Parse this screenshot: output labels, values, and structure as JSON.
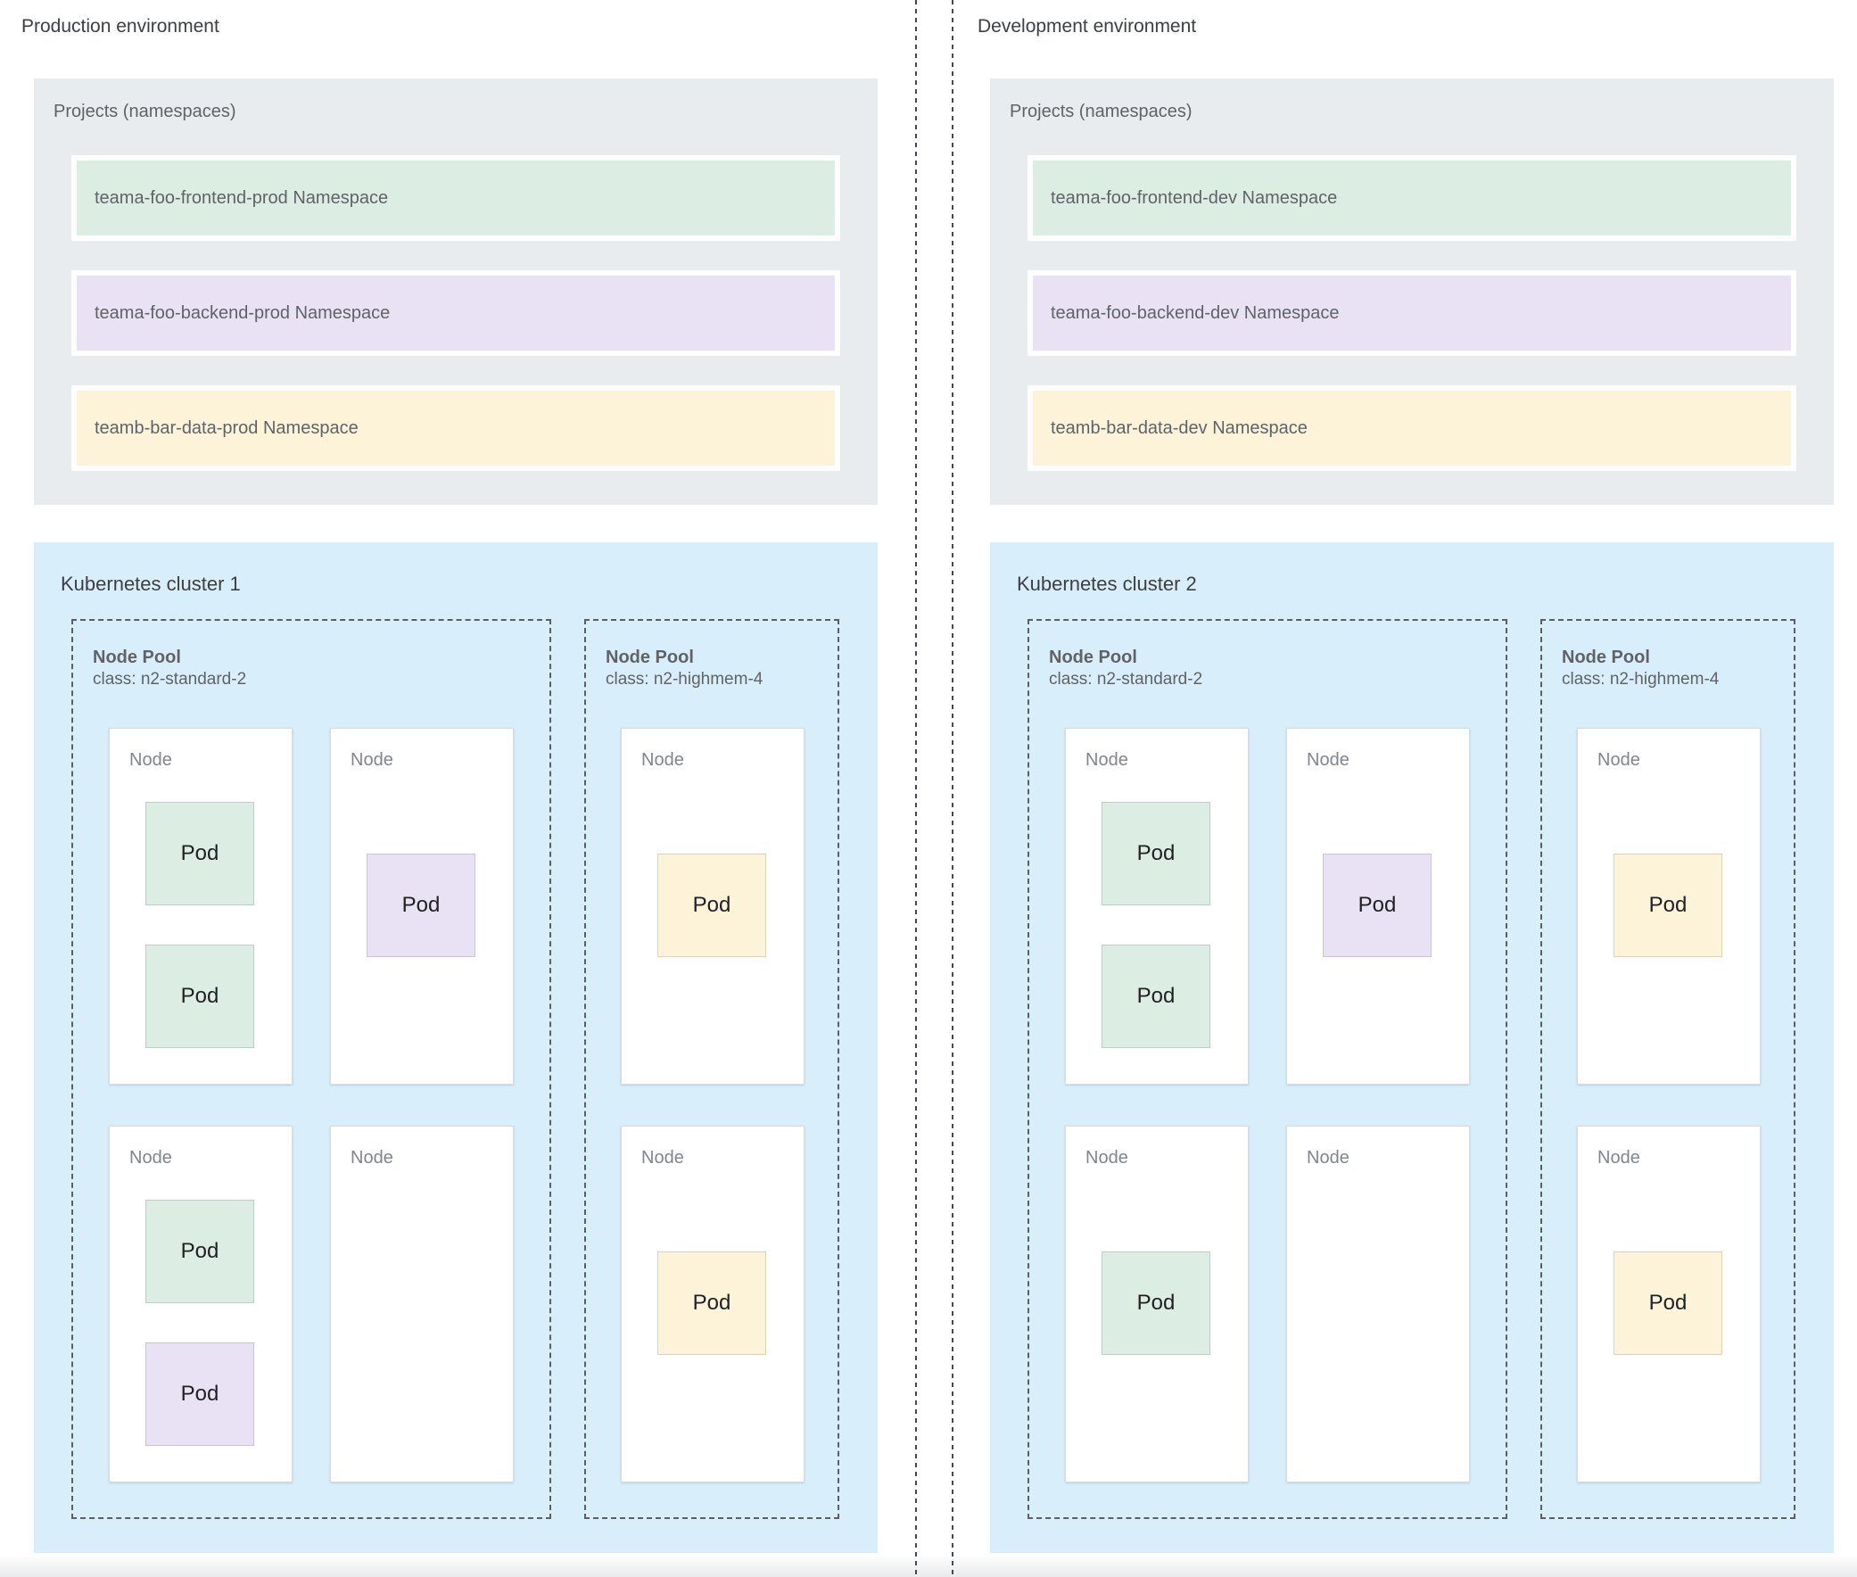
{
  "colors": {
    "projects_bg": "#e9ecee",
    "cluster_bg": "#d9eefb",
    "node_bg": "#ffffff",
    "pod_green": "#dceee3",
    "pod_purple": "#e9e2f4",
    "pod_yellow": "#fcf3d8"
  },
  "environments": [
    {
      "title": "Production environment",
      "projects": {
        "title": "Projects (namespaces)",
        "namespaces": [
          {
            "label": "teama-foo-frontend-prod Namespace",
            "color": "green"
          },
          {
            "label": "teama-foo-backend-prod Namespace",
            "color": "purple"
          },
          {
            "label": "teamb-bar-data-prod Namespace",
            "color": "yellow"
          }
        ]
      },
      "cluster": {
        "title": "Kubernetes cluster 1",
        "node_pools": [
          {
            "title": "Node Pool",
            "machine_class": "class: n2-standard-2",
            "nodes": [
              {
                "label": "Node",
                "pods": [
                  {
                    "label": "Pod",
                    "color": "green"
                  },
                  {
                    "label": "Pod",
                    "color": "green"
                  }
                ]
              },
              {
                "label": "Node",
                "pods": [
                  {
                    "label": "Pod",
                    "color": "purple"
                  }
                ]
              },
              {
                "label": "Node",
                "pods": [
                  {
                    "label": "Pod",
                    "color": "green"
                  },
                  {
                    "label": "Pod",
                    "color": "purple"
                  }
                ]
              },
              {
                "label": "Node",
                "pods": []
              }
            ]
          },
          {
            "title": "Node Pool",
            "machine_class": "class: n2-highmem-4",
            "nodes": [
              {
                "label": "Node",
                "pods": [
                  {
                    "label": "Pod",
                    "color": "yellow"
                  }
                ]
              },
              {
                "label": "Node",
                "pods": [
                  {
                    "label": "Pod",
                    "color": "yellow"
                  }
                ]
              }
            ]
          }
        ]
      }
    },
    {
      "title": "Development environment",
      "projects": {
        "title": "Projects (namespaces)",
        "namespaces": [
          {
            "label": "teama-foo-frontend-dev Namespace",
            "color": "green"
          },
          {
            "label": "teama-foo-backend-dev Namespace",
            "color": "purple"
          },
          {
            "label": "teamb-bar-data-dev Namespace",
            "color": "yellow"
          }
        ]
      },
      "cluster": {
        "title": "Kubernetes cluster 2",
        "node_pools": [
          {
            "title": "Node Pool",
            "machine_class": "class: n2-standard-2",
            "nodes": [
              {
                "label": "Node",
                "pods": [
                  {
                    "label": "Pod",
                    "color": "green"
                  },
                  {
                    "label": "Pod",
                    "color": "green"
                  }
                ]
              },
              {
                "label": "Node",
                "pods": [
                  {
                    "label": "Pod",
                    "color": "purple"
                  }
                ]
              },
              {
                "label": "Node",
                "pods": [
                  {
                    "label": "Pod",
                    "color": "green"
                  }
                ]
              },
              {
                "label": "Node",
                "pods": []
              }
            ]
          },
          {
            "title": "Node Pool",
            "machine_class": "class: n2-highmem-4",
            "nodes": [
              {
                "label": "Node",
                "pods": [
                  {
                    "label": "Pod",
                    "color": "yellow"
                  }
                ]
              },
              {
                "label": "Node",
                "pods": [
                  {
                    "label": "Pod",
                    "color": "yellow"
                  }
                ]
              }
            ]
          }
        ]
      }
    }
  ]
}
